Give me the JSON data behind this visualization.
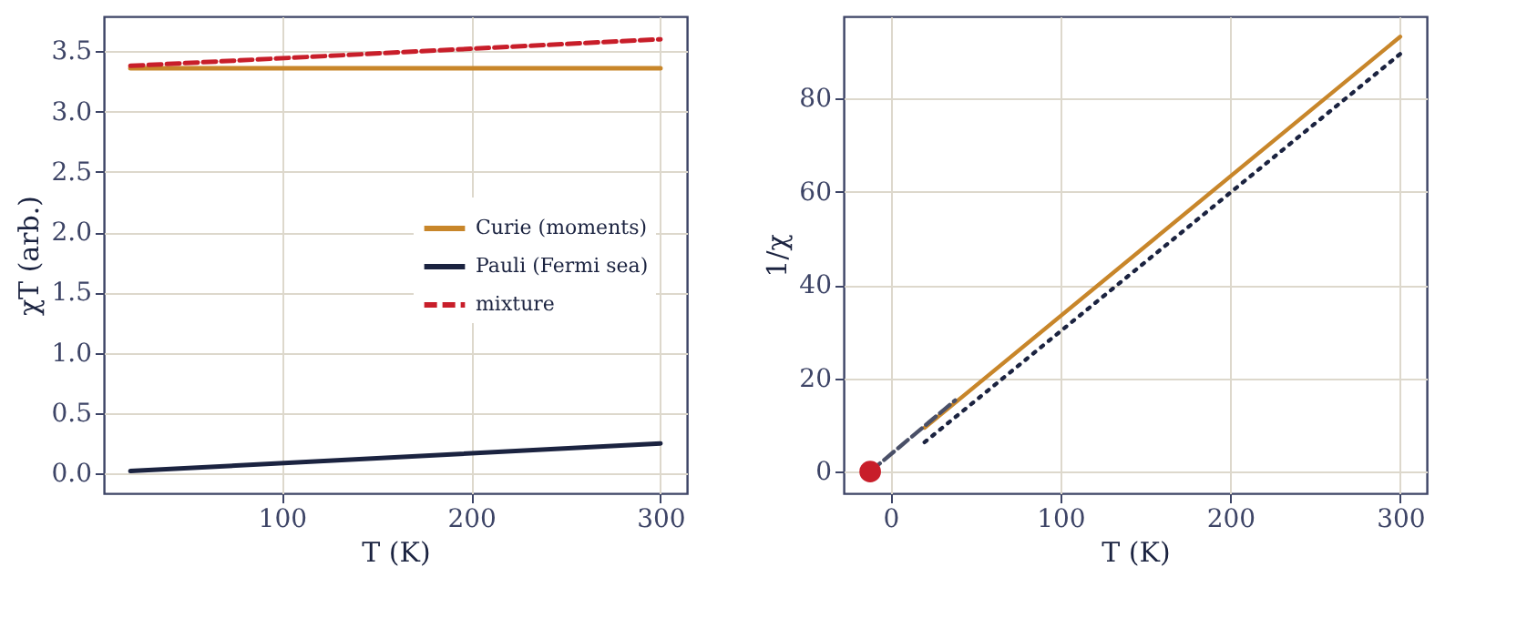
{
  "chart_data": [
    {
      "type": "line",
      "xlabel": "T (K)",
      "ylabel": "χT (arb.)",
      "xlim": [
        6,
        314
      ],
      "ylim": [
        -0.164,
        3.79
      ],
      "xticks": [
        100,
        200,
        300
      ],
      "yticks": [
        {
          "value": 0,
          "label": "0.0"
        },
        {
          "value": 0.5,
          "label": "0.5"
        },
        {
          "value": 1,
          "label": "1.0"
        },
        {
          "value": 1.5,
          "label": "1.5"
        },
        {
          "value": 2,
          "label": "2.0"
        },
        {
          "value": 2.5,
          "label": "2.5"
        },
        {
          "value": 3,
          "label": "3.0"
        },
        {
          "value": 3.5,
          "label": "3.5"
        }
      ],
      "grid": true,
      "legend": "right",
      "series": [
        {
          "name": "Curie (moments)",
          "color": "#c8862a",
          "x": [
            20,
            300
          ],
          "values": [
            3.36,
            3.36
          ],
          "line_style": "solid"
        },
        {
          "name": "Pauli (Fermi sea)",
          "color": "#1b2340",
          "x": [
            20,
            300
          ],
          "values": [
            0.02,
            0.25
          ],
          "line_style": "solid"
        },
        {
          "name": "mixture",
          "color": "#c81e2a",
          "x": [
            20,
            300
          ],
          "values": [
            3.38,
            3.6
          ],
          "line_style": "dashed"
        }
      ]
    },
    {
      "type": "line",
      "xlabel": "T (K)",
      "ylabel": "1/χ",
      "xlim": [
        -27.6,
        315.6
      ],
      "ylim": [
        -4.65,
        97.65
      ],
      "xticks": [
        0,
        100,
        200,
        300
      ],
      "yticks": [
        0,
        20,
        40,
        60,
        80
      ],
      "grid": true,
      "series": [
        {
          "color": "#c8862a",
          "x": [
            20,
            300
          ],
          "values": [
            9.4,
            93.3
          ],
          "line_style": "solid"
        },
        {
          "color": "#1b2340",
          "x": [
            20,
            300
          ],
          "values": [
            6.3,
            89.6
          ],
          "line_style": "dotted"
        },
        {
          "color": "#4a5068",
          "x": [
            -12,
            38
          ],
          "values": [
            0,
            15.3
          ],
          "line_style": "dashed"
        },
        {
          "type": "scatter",
          "color": "#c81e2a",
          "x": [
            -12
          ],
          "values": [
            0
          ],
          "marker": "circle"
        }
      ]
    }
  ]
}
